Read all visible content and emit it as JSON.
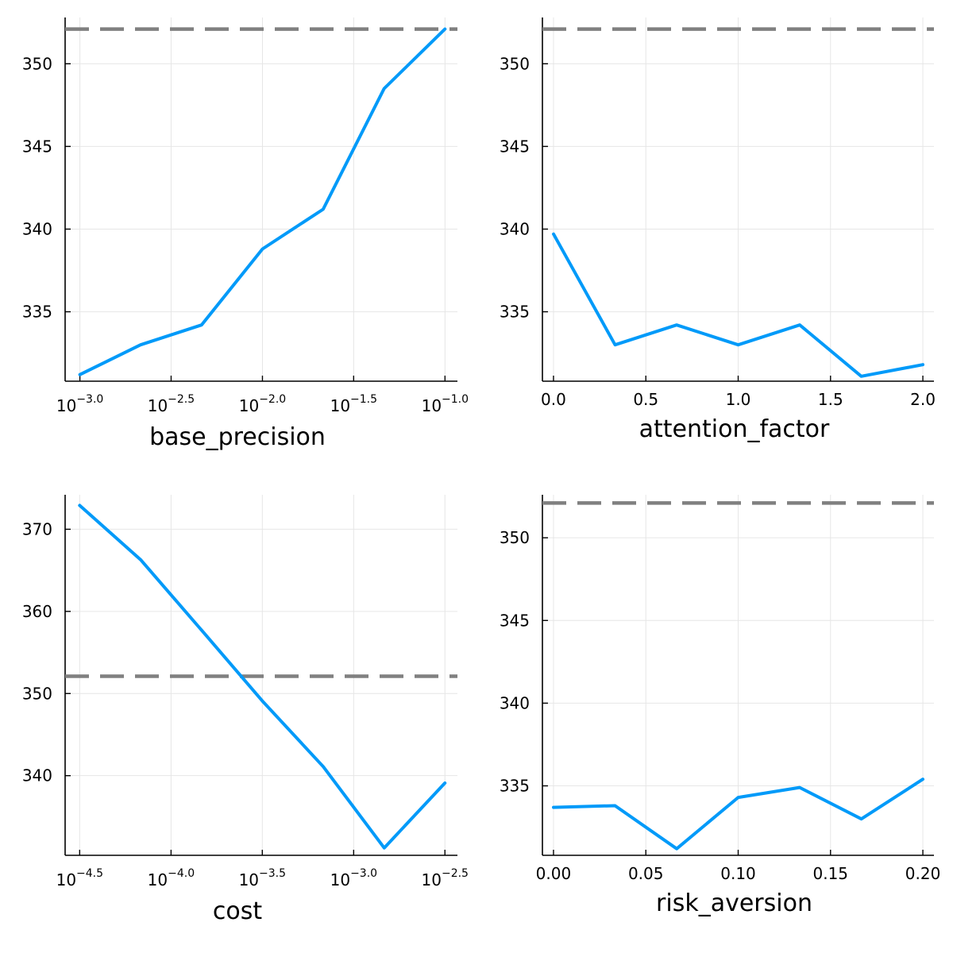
{
  "colors": {
    "series": "#009af9",
    "reference": "#808080",
    "grid": "#e6e6e6"
  },
  "chart_data": [
    {
      "type": "line",
      "xlabel": "base_precision",
      "xscale": "log10",
      "x": [
        0.001,
        0.00215,
        0.00464,
        0.01,
        0.0215,
        0.0464,
        0.1
      ],
      "xticks": [
        0.001,
        0.00316,
        0.01,
        0.0316,
        0.1
      ],
      "xtick_labels": [
        [
          "10",
          "−3.0"
        ],
        [
          "10",
          "−2.5"
        ],
        [
          "10",
          "−2.0"
        ],
        [
          "10",
          "−1.5"
        ],
        [
          "10",
          "−1.0"
        ]
      ],
      "xlim": [
        0.00083,
        0.117
      ],
      "series": [
        {
          "values": [
            331.2,
            333.0,
            334.2,
            338.8,
            341.2,
            348.5,
            352.1
          ]
        }
      ],
      "reference_line": 352.1,
      "ylim": [
        330.8,
        352.8
      ],
      "yticks": [
        335,
        340,
        345,
        350
      ],
      "ytick_labels": [
        "335",
        "340",
        "345",
        "350"
      ],
      "grid": true
    },
    {
      "type": "line",
      "xlabel": "attention_factor",
      "xscale": "linear",
      "x": [
        0.0,
        0.3333,
        0.6667,
        1.0,
        1.3333,
        1.6667,
        2.0
      ],
      "xticks": [
        0.0,
        0.5,
        1.0,
        1.5,
        2.0
      ],
      "xtick_labels": [
        "0.0",
        "0.5",
        "1.0",
        "1.5",
        "2.0"
      ],
      "xlim": [
        -0.06,
        2.06
      ],
      "series": [
        {
          "values": [
            339.7,
            333.0,
            334.2,
            333.0,
            334.2,
            331.1,
            331.8
          ]
        }
      ],
      "reference_line": 352.1,
      "ylim": [
        330.8,
        352.8
      ],
      "yticks": [
        335,
        340,
        345,
        350
      ],
      "ytick_labels": [
        "335",
        "340",
        "345",
        "350"
      ],
      "grid": true
    },
    {
      "type": "line",
      "xlabel": "cost",
      "xscale": "log10",
      "x": [
        3.16e-05,
        6.81e-05,
        0.000147,
        0.000316,
        0.000681,
        0.00147,
        0.00316
      ],
      "xticks": [
        3.16e-05,
        0.0001,
        0.000316,
        0.001,
        0.00316
      ],
      "xtick_labels": [
        [
          "10",
          "−4.5"
        ],
        [
          "10",
          "−4.0"
        ],
        [
          "10",
          "−3.5"
        ],
        [
          "10",
          "−3.0"
        ],
        [
          "10",
          "−2.5"
        ]
      ],
      "xlim": [
        2.63e-05,
        0.0037
      ],
      "series": [
        {
          "values": [
            372.9,
            366.3,
            357.7,
            349.1,
            341.1,
            331.2,
            339.1
          ]
        }
      ],
      "reference_line": 352.1,
      "ylim": [
        330.3,
        374.2
      ],
      "yticks": [
        340,
        350,
        360,
        370
      ],
      "ytick_labels": [
        "340",
        "350",
        "360",
        "370"
      ],
      "grid": true
    },
    {
      "type": "line",
      "xlabel": "risk_aversion",
      "xscale": "linear",
      "x": [
        0.0,
        0.0333,
        0.0667,
        0.1,
        0.1333,
        0.1667,
        0.2
      ],
      "xticks": [
        0.0,
        0.05,
        0.1,
        0.15,
        0.2
      ],
      "xtick_labels": [
        "0.00",
        "0.05",
        "0.10",
        "0.15",
        "0.20"
      ],
      "xlim": [
        -0.006,
        0.206
      ],
      "series": [
        {
          "values": [
            333.7,
            333.8,
            331.2,
            334.3,
            334.9,
            333.0,
            335.4
          ]
        }
      ],
      "reference_line": 352.1,
      "ylim": [
        330.8,
        352.6
      ],
      "yticks": [
        335,
        340,
        345,
        350
      ],
      "ytick_labels": [
        "335",
        "340",
        "345",
        "350"
      ],
      "grid": true
    }
  ]
}
